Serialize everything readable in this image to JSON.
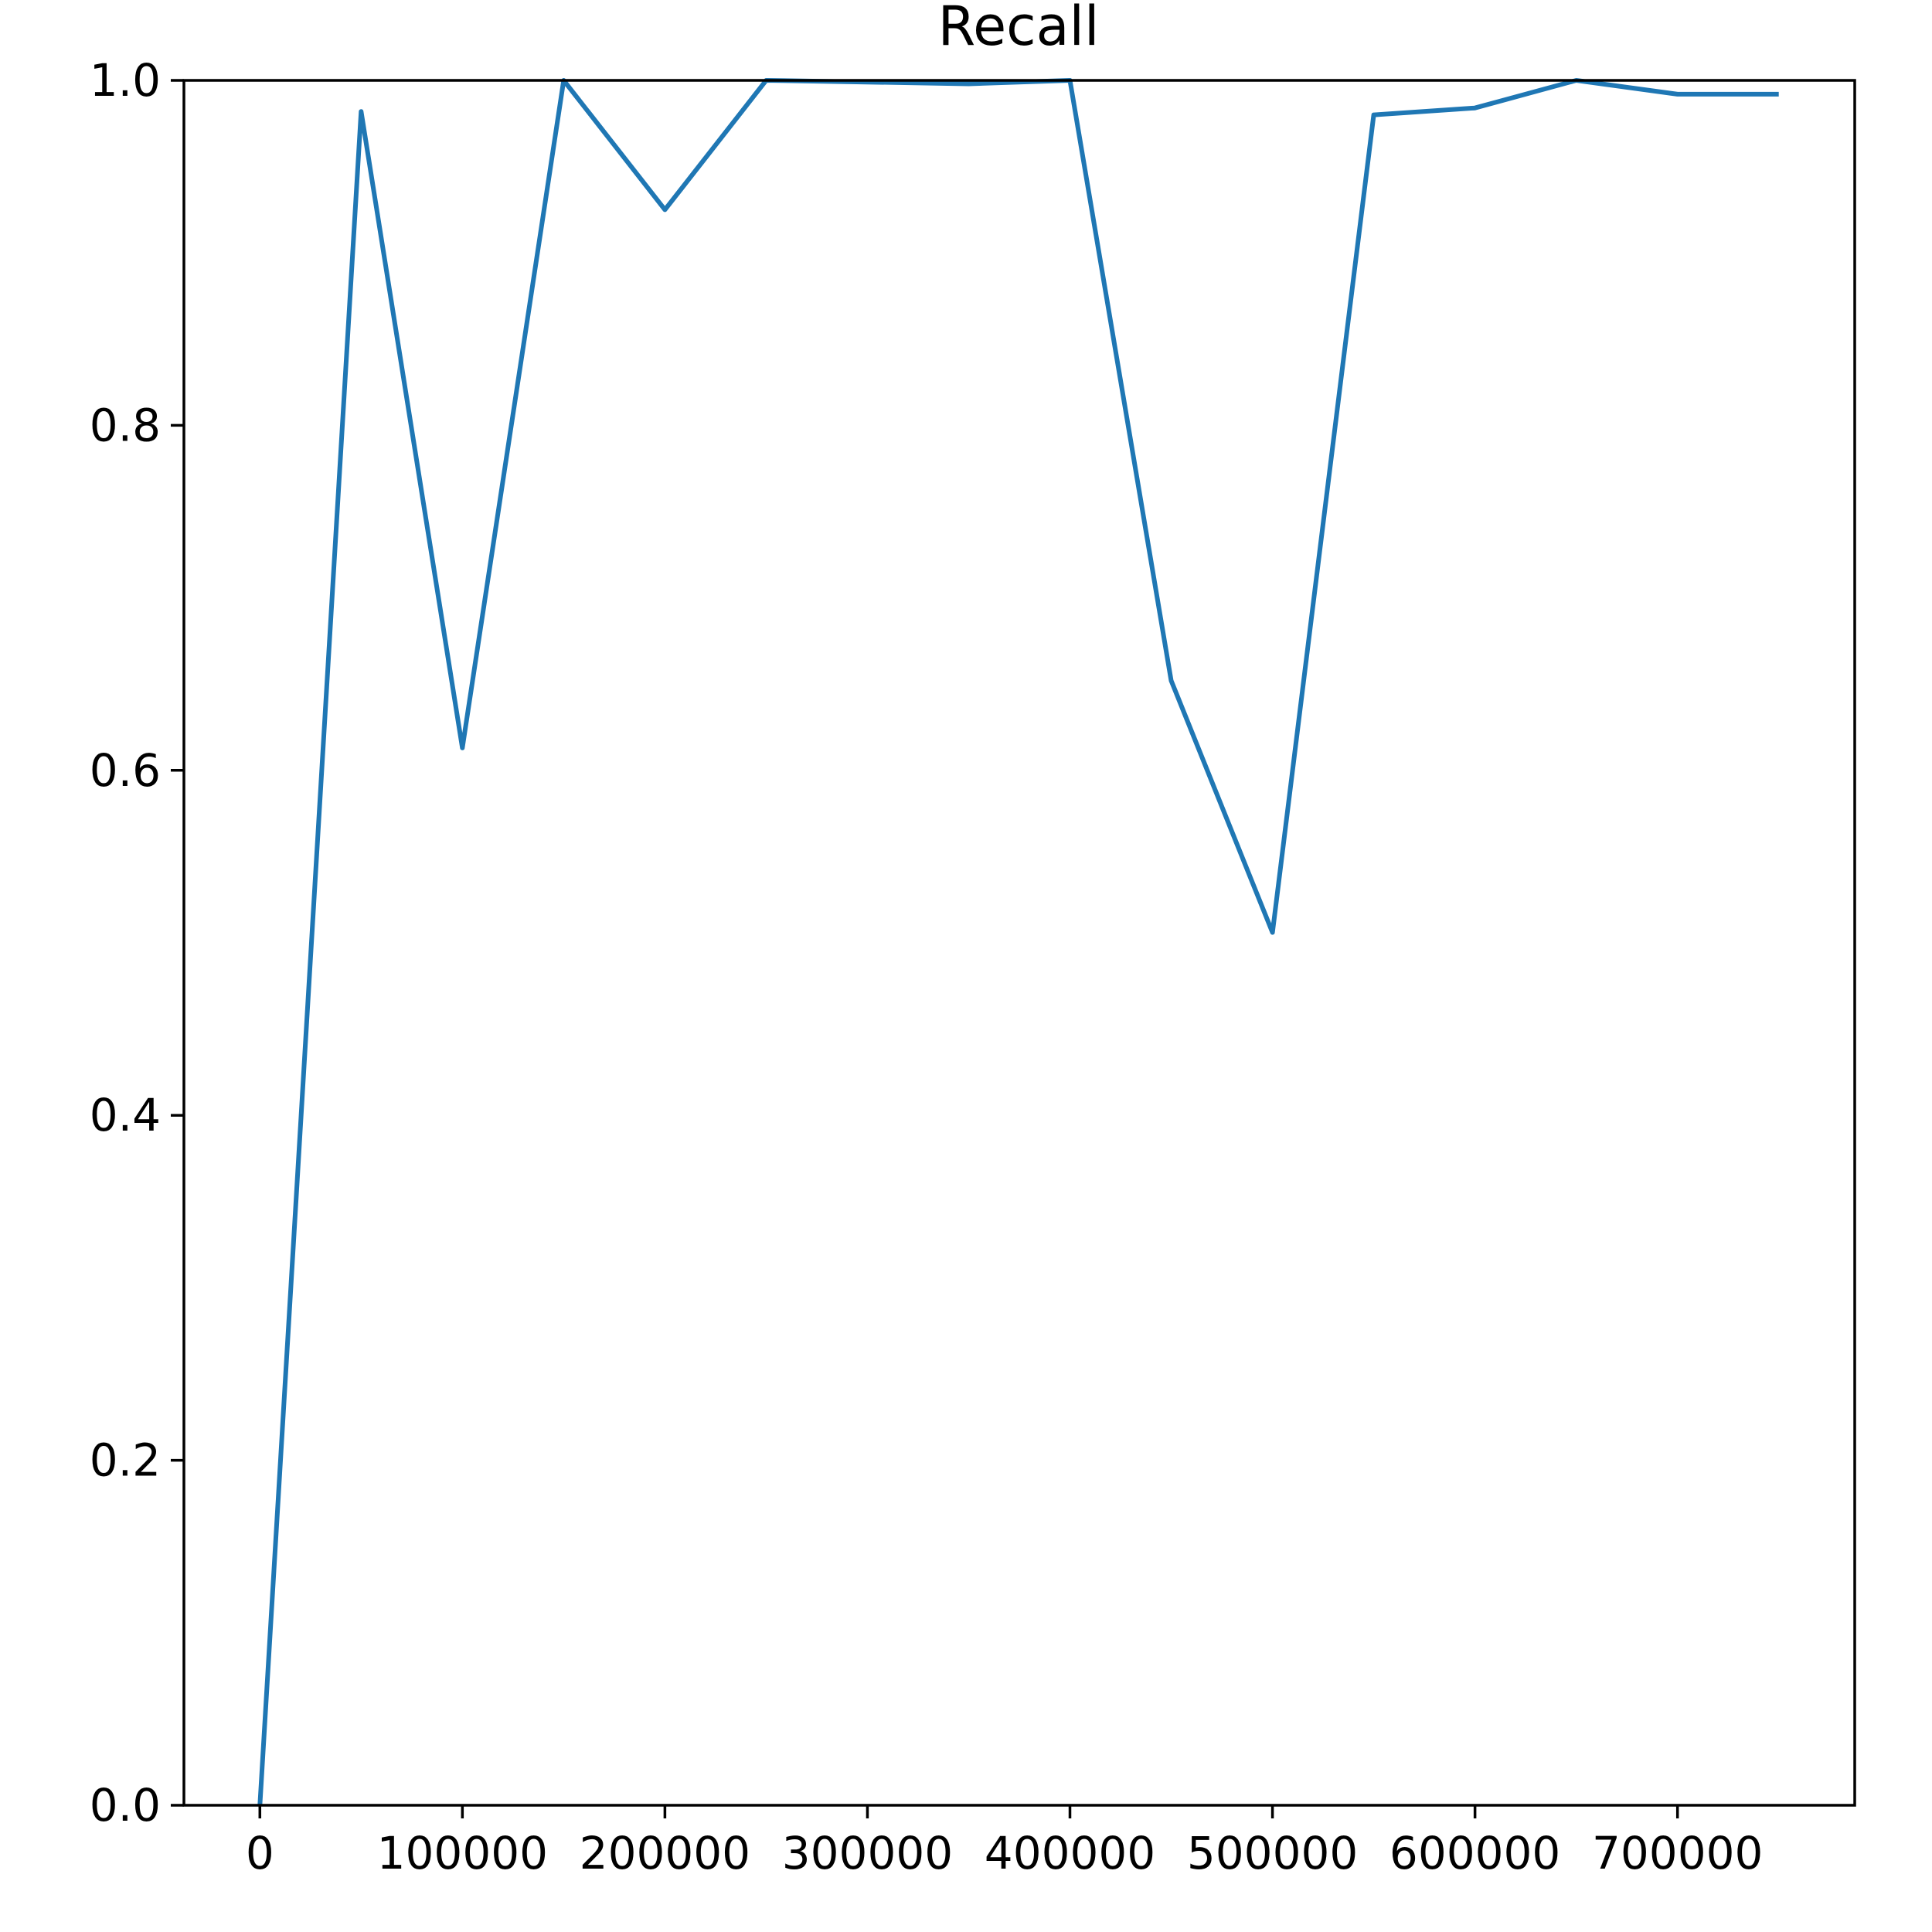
{
  "chart_data": {
    "type": "line",
    "title": "Recall",
    "xlabel": "",
    "ylabel": "",
    "xlim": [
      -37500,
      787500
    ],
    "ylim": [
      0.0,
      1.0
    ],
    "xticks": [
      0,
      100000,
      200000,
      300000,
      400000,
      500000,
      600000,
      700000
    ],
    "xtick_labels": [
      "0",
      "100000",
      "200000",
      "300000",
      "400000",
      "500000",
      "600000",
      "700000"
    ],
    "yticks": [
      0.0,
      0.2,
      0.4,
      0.6,
      0.8,
      1.0
    ],
    "ytick_labels": [
      "0.0",
      "0.2",
      "0.4",
      "0.6",
      "0.8",
      "1.0"
    ],
    "grid": false,
    "legend": "none",
    "series": [
      {
        "color": "#1f77b4",
        "x": [
          0,
          50000,
          100000,
          150000,
          200000,
          250000,
          300000,
          350000,
          400000,
          450000,
          500000,
          550000,
          600000,
          650000,
          700000,
          750000
        ],
        "y": [
          0.0,
          0.982,
          0.613,
          1.0,
          0.925,
          1.0,
          0.999,
          0.998,
          1.0,
          0.652,
          0.506,
          0.98,
          0.984,
          1.0,
          0.992,
          0.992
        ]
      }
    ]
  }
}
